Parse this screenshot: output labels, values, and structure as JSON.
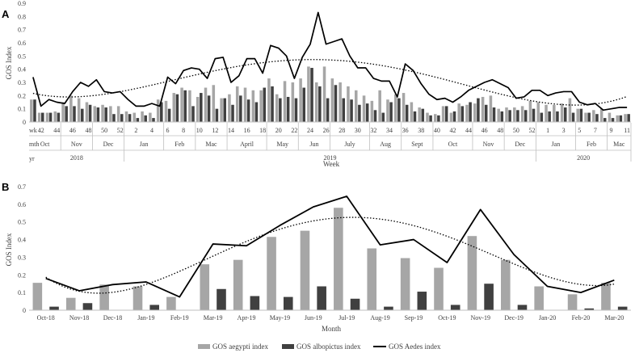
{
  "legend": {
    "aegypti": "GOS aegypti index",
    "albopictus": "GOS albopictus index",
    "aedes": "GOS Aedes index"
  },
  "colors": {
    "aegypti": "#a6a6a6",
    "albopictus": "#404040",
    "aedes": "#000000",
    "axis": "#bfbfbf",
    "text": "#404040"
  },
  "chart_data": [
    {
      "panel_label": "A",
      "type": "bar",
      "xlabel": "Week",
      "ylabel": "GOS Index",
      "ylim": [
        0,
        0.9
      ],
      "yticks": [
        0,
        0.1,
        0.2,
        0.3,
        0.4,
        0.5,
        0.6,
        0.7,
        0.8,
        0.9
      ],
      "ytick_labels": [
        "0",
        "0.1",
        "0.2",
        "0.3",
        "0.4",
        "0.5",
        "0.6",
        "0.7",
        "0.8",
        "0.9"
      ],
      "grid": false,
      "trendline": "polynomial-dotted",
      "row_labels": {
        "week": "wk",
        "month": "mth",
        "year": "yr"
      },
      "week_ticks": [
        "42",
        "44",
        "46",
        "48",
        "50",
        "52",
        "2",
        "4",
        "6",
        "8",
        "10",
        "12",
        "14",
        "16",
        "18",
        "20",
        "22",
        "24",
        "26",
        "28",
        "30",
        "32",
        "34",
        "36",
        "38",
        "40",
        "42",
        "44",
        "46",
        "48",
        "50",
        "52",
        "1",
        "3",
        "5",
        "7",
        "9",
        "11"
      ],
      "week_tick_index": [
        1,
        3,
        5,
        7,
        9,
        11,
        13,
        15,
        17,
        19,
        21,
        23,
        25,
        27,
        29,
        31,
        33,
        35,
        37,
        39,
        41,
        43,
        45,
        47,
        49,
        51,
        53,
        55,
        57,
        59,
        61,
        63,
        65,
        67,
        69,
        71,
        73,
        75
      ],
      "months": [
        {
          "label": "Oct",
          "start": 0,
          "end": 3
        },
        {
          "label": "Nov",
          "start": 4,
          "end": 7
        },
        {
          "label": "Dec",
          "start": 8,
          "end": 11
        },
        {
          "label": "Jan",
          "start": 12,
          "end": 16
        },
        {
          "label": "Feb",
          "start": 17,
          "end": 20
        },
        {
          "label": "Mac",
          "start": 21,
          "end": 24
        },
        {
          "label": "April",
          "start": 25,
          "end": 29
        },
        {
          "label": "May",
          "start": 30,
          "end": 33
        },
        {
          "label": "Jun",
          "start": 34,
          "end": 37
        },
        {
          "label": "July",
          "start": 38,
          "end": 42
        },
        {
          "label": "Aug",
          "start": 43,
          "end": 46
        },
        {
          "label": "Sept",
          "start": 47,
          "end": 50
        },
        {
          "label": "Oct",
          "start": 51,
          "end": 55
        },
        {
          "label": "Nov",
          "start": 56,
          "end": 59
        },
        {
          "label": "Dec",
          "start": 60,
          "end": 63
        },
        {
          "label": "Jan",
          "start": 64,
          "end": 68
        },
        {
          "label": "Feb",
          "start": 69,
          "end": 72
        },
        {
          "label": "Mac",
          "start": 73,
          "end": 75
        }
      ],
      "years": [
        {
          "label": "2018",
          "start": 0,
          "end": 11
        },
        {
          "label": "2019",
          "start": 12,
          "end": 63
        },
        {
          "label": "2020",
          "start": 64,
          "end": 75
        }
      ],
      "series": [
        {
          "name": "GOS aegypti index",
          "kind": "bar",
          "values": [
            0.17,
            0.07,
            0.07,
            0.08,
            0.15,
            0.2,
            0.18,
            0.15,
            0.12,
            0.13,
            0.12,
            0.12,
            0.08,
            0.07,
            0.08,
            0.07,
            0.17,
            0.16,
            0.22,
            0.26,
            0.24,
            0.19,
            0.26,
            0.28,
            0.18,
            0.21,
            0.27,
            0.26,
            0.24,
            0.24,
            0.33,
            0.21,
            0.31,
            0.3,
            0.33,
            0.42,
            0.3,
            0.42,
            0.33,
            0.3,
            0.27,
            0.24,
            0.2,
            0.16,
            0.24,
            0.17,
            0.21,
            0.22,
            0.15,
            0.11,
            0.07,
            0.06,
            0.12,
            0.07,
            0.14,
            0.13,
            0.14,
            0.19,
            0.2,
            0.1,
            0.11,
            0.11,
            0.12,
            0.16,
            0.15,
            0.13,
            0.13,
            0.14,
            0.18,
            0.1,
            0.07,
            0.09,
            0.1,
            0.07,
            0.05,
            0.06
          ]
        },
        {
          "name": "GOS albopictus index",
          "kind": "bar",
          "values": [
            0.17,
            0.07,
            0.07,
            0.07,
            0.12,
            0.12,
            0.1,
            0.13,
            0.11,
            0.11,
            0.06,
            0.06,
            0.06,
            0.03,
            0.05,
            0.03,
            0.15,
            0.1,
            0.21,
            0.24,
            0.12,
            0.22,
            0.2,
            0.1,
            0.18,
            0.13,
            0.2,
            0.17,
            0.15,
            0.26,
            0.27,
            0.18,
            0.19,
            0.18,
            0.26,
            0.41,
            0.27,
            0.18,
            0.28,
            0.18,
            0.17,
            0.13,
            0.14,
            0.09,
            0.07,
            0.15,
            0.18,
            0.13,
            0.08,
            0.1,
            0.05,
            0.05,
            0.12,
            0.08,
            0.12,
            0.15,
            0.18,
            0.13,
            0.11,
            0.08,
            0.09,
            0.09,
            0.09,
            0.1,
            0.07,
            0.08,
            0.08,
            0.11,
            0.07,
            0.1,
            0.07,
            0.06,
            0.03,
            0.03,
            0.05,
            0.06
          ]
        },
        {
          "name": "GOS Aedes index",
          "kind": "line",
          "values": [
            0.34,
            0.12,
            0.17,
            0.15,
            0.14,
            0.23,
            0.3,
            0.27,
            0.32,
            0.23,
            0.22,
            0.23,
            0.17,
            0.12,
            0.12,
            0.14,
            0.12,
            0.34,
            0.29,
            0.39,
            0.41,
            0.4,
            0.33,
            0.48,
            0.49,
            0.3,
            0.35,
            0.48,
            0.48,
            0.37,
            0.58,
            0.56,
            0.5,
            0.33,
            0.49,
            0.59,
            0.83,
            0.59,
            0.61,
            0.63,
            0.5,
            0.41,
            0.41,
            0.33,
            0.31,
            0.31,
            0.19,
            0.44,
            0.39,
            0.29,
            0.21,
            0.17,
            0.18,
            0.15,
            0.19,
            0.24,
            0.27,
            0.3,
            0.32,
            0.29,
            0.26,
            0.18,
            0.19,
            0.24,
            0.24,
            0.2,
            0.22,
            0.23,
            0.23,
            0.15,
            0.13,
            0.14,
            0.09,
            0.1,
            0.11,
            0.11
          ]
        }
      ]
    },
    {
      "panel_label": "B",
      "type": "bar",
      "xlabel": "Month",
      "ylabel": "GOS Index",
      "ylim": [
        0,
        0.7
      ],
      "yticks": [
        0,
        0.1,
        0.2,
        0.3,
        0.4,
        0.5,
        0.6,
        0.7
      ],
      "ytick_labels": [
        "0",
        "0.1",
        "0.2",
        "0.3",
        "0.4",
        "0.5",
        "0.6",
        "0.7"
      ],
      "grid": false,
      "trendline": "polynomial-dotted",
      "legend_position": "bottom",
      "categories": [
        "Oct-18",
        "Nov-18",
        "Dec-18",
        "Jan-19",
        "Feb-19",
        "Mar-19",
        "Apr-19",
        "May-19",
        "Jun-19",
        "Jul-19",
        "Aug-19",
        "Sep-19",
        "Oct-19",
        "Nov-19",
        "Dec-19",
        "Jan-20",
        "Feb-20",
        "Mar-20"
      ],
      "series": [
        {
          "name": "GOS aegypti index",
          "kind": "bar",
          "values": [
            0.155,
            0.07,
            0.145,
            0.135,
            0.075,
            0.26,
            0.285,
            0.415,
            0.45,
            0.58,
            0.35,
            0.295,
            0.24,
            0.42,
            0.285,
            0.135,
            0.09,
            0.155
          ]
        },
        {
          "name": "GOS albopictus index",
          "kind": "bar",
          "values": [
            0.02,
            0.04,
            0.0,
            0.03,
            0.0,
            0.12,
            0.08,
            0.075,
            0.135,
            0.065,
            0.02,
            0.105,
            0.03,
            0.15,
            0.03,
            0.0,
            0.01,
            0.02
          ]
        },
        {
          "name": "GOS Aedes index",
          "kind": "line",
          "values": [
            0.18,
            0.11,
            0.145,
            0.16,
            0.075,
            0.375,
            0.365,
            0.48,
            0.585,
            0.645,
            0.37,
            0.4,
            0.27,
            0.57,
            0.315,
            0.135,
            0.1,
            0.17
          ]
        }
      ]
    }
  ]
}
